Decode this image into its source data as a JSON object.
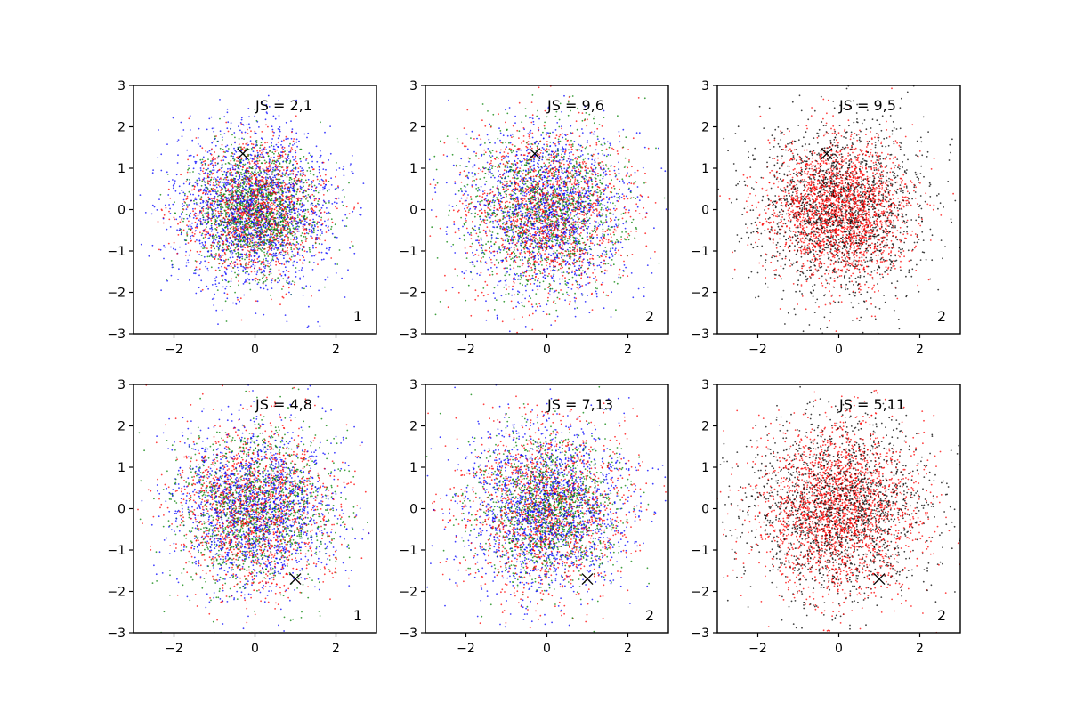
{
  "chart_data": [
    {
      "type": "scatter",
      "xlim": [
        -3,
        3
      ],
      "ylim": [
        -3,
        3
      ],
      "x_ticks": [
        "−2",
        "0",
        "2"
      ],
      "x_tick_values": [
        -2,
        0,
        2
      ],
      "y_ticks": [
        "−3",
        "−2",
        "−1",
        "0",
        "1",
        "2",
        "3"
      ],
      "y_tick_values": [
        -3,
        -2,
        -1,
        0,
        1,
        2,
        3
      ],
      "js_label": "JS = 2,1",
      "corner_label": "1",
      "marker": {
        "x": -0.3,
        "y": 1.35,
        "symbol": "x"
      },
      "series": [
        {
          "color": "#0000ff",
          "n_points": 1800,
          "sd": 1.0
        },
        {
          "color": "#ff0000",
          "n_points": 1400,
          "sd": 0.8
        },
        {
          "color": "#008000",
          "n_points": 1400,
          "sd": 0.75
        }
      ],
      "grid": false
    },
    {
      "type": "scatter",
      "xlim": [
        -3,
        3
      ],
      "ylim": [
        -3,
        3
      ],
      "x_ticks": [
        "−2",
        "0",
        "2"
      ],
      "x_tick_values": [
        -2,
        0,
        2
      ],
      "y_ticks": [
        "−3",
        "−2",
        "−1",
        "0",
        "1",
        "2",
        "3"
      ],
      "y_tick_values": [
        -3,
        -2,
        -1,
        0,
        1,
        2,
        3
      ],
      "js_label": "JS = 9,6",
      "corner_label": "2",
      "marker": {
        "x": -0.3,
        "y": 1.35,
        "symbol": "x"
      },
      "series": [
        {
          "color": "#0000ff",
          "n_points": 1500,
          "sd": 1.0
        },
        {
          "color": "#ff0000",
          "n_points": 1500,
          "sd": 1.0
        },
        {
          "color": "#008000",
          "n_points": 1300,
          "sd": 1.0
        }
      ],
      "grid": false
    },
    {
      "type": "scatter",
      "xlim": [
        -3,
        3
      ],
      "ylim": [
        -3,
        3
      ],
      "x_ticks": [
        "−2",
        "0",
        "2"
      ],
      "x_tick_values": [
        -2,
        0,
        2
      ],
      "y_ticks": [
        "−3",
        "−2",
        "−1",
        "0",
        "1",
        "2",
        "3"
      ],
      "y_tick_values": [
        -3,
        -2,
        -1,
        0,
        1,
        2,
        3
      ],
      "js_label": "JS = 9,5",
      "corner_label": "2",
      "marker": {
        "x": -0.3,
        "y": 1.35,
        "symbol": "x"
      },
      "series": [
        {
          "color": "#000000",
          "n_points": 1800,
          "sd": 1.05
        },
        {
          "color": "#ff0000",
          "n_points": 2200,
          "sd": 0.85
        }
      ],
      "grid": false
    },
    {
      "type": "scatter",
      "xlim": [
        -3,
        3
      ],
      "ylim": [
        -3,
        3
      ],
      "x_ticks": [
        "−2",
        "0",
        "2"
      ],
      "x_tick_values": [
        -2,
        0,
        2
      ],
      "y_ticks": [
        "−3",
        "−2",
        "−1",
        "0",
        "1",
        "2",
        "3"
      ],
      "y_tick_values": [
        -3,
        -2,
        -1,
        0,
        1,
        2,
        3
      ],
      "js_label": "JS = 4,8",
      "corner_label": "1",
      "marker": {
        "x": 1.0,
        "y": -1.7,
        "symbol": "x"
      },
      "series": [
        {
          "color": "#0000ff",
          "n_points": 1600,
          "sd": 1.0
        },
        {
          "color": "#ff0000",
          "n_points": 1400,
          "sd": 1.0
        },
        {
          "color": "#008000",
          "n_points": 1300,
          "sd": 1.0
        }
      ],
      "grid": false
    },
    {
      "type": "scatter",
      "xlim": [
        -3,
        3
      ],
      "ylim": [
        -3,
        3
      ],
      "x_ticks": [
        "−2",
        "0",
        "2"
      ],
      "x_tick_values": [
        -2,
        0,
        2
      ],
      "y_ticks": [
        "−3",
        "−2",
        "−1",
        "0",
        "1",
        "2",
        "3"
      ],
      "y_tick_values": [
        -3,
        -2,
        -1,
        0,
        1,
        2,
        3
      ],
      "js_label": "JS = 7,13",
      "corner_label": "2",
      "marker": {
        "x": 1.0,
        "y": -1.7,
        "symbol": "x"
      },
      "series": [
        {
          "color": "#0000ff",
          "n_points": 1600,
          "sd": 1.05
        },
        {
          "color": "#ff0000",
          "n_points": 1400,
          "sd": 1.0
        },
        {
          "color": "#008000",
          "n_points": 1300,
          "sd": 0.9
        }
      ],
      "grid": false
    },
    {
      "type": "scatter",
      "xlim": [
        -3,
        3
      ],
      "ylim": [
        -3,
        3
      ],
      "x_ticks": [
        "−2",
        "0",
        "2"
      ],
      "x_tick_values": [
        -2,
        0,
        2
      ],
      "y_ticks": [
        "−3",
        "−2",
        "−1",
        "0",
        "1",
        "2",
        "3"
      ],
      "y_tick_values": [
        -3,
        -2,
        -1,
        0,
        1,
        2,
        3
      ],
      "js_label": "JS = 5,11",
      "corner_label": "2",
      "marker": {
        "x": 1.0,
        "y": -1.7,
        "symbol": "x"
      },
      "series": [
        {
          "color": "#000000",
          "n_points": 1800,
          "sd": 1.1
        },
        {
          "color": "#ff0000",
          "n_points": 2200,
          "sd": 1.0
        }
      ],
      "grid": false
    }
  ]
}
